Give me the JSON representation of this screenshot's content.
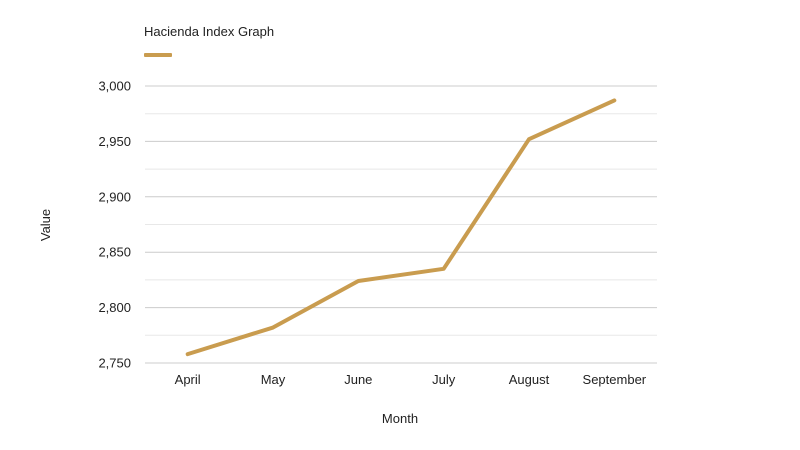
{
  "chart_data": {
    "type": "line",
    "title": "",
    "xlabel": "Month",
    "ylabel": "Value",
    "categories": [
      "April",
      "May",
      "June",
      "July",
      "August",
      "September"
    ],
    "series": [
      {
        "name": "Hacienda Index Graph",
        "values": [
          2758,
          2782,
          2824,
          2835,
          2952,
          2987
        ],
        "color": "#c99c4f"
      }
    ],
    "ylim": [
      2750,
      3000
    ],
    "yticks": [
      2750,
      2800,
      2850,
      2900,
      2950,
      3000
    ],
    "ytick_labels": [
      "2,750",
      "2,800",
      "2,850",
      "2,900",
      "2,950",
      "3,000"
    ],
    "grid": true,
    "legend": "top-left",
    "colors": {
      "grid_major": "#cccccc",
      "grid_minor": "#e8e8e8",
      "text": "#222222"
    }
  }
}
